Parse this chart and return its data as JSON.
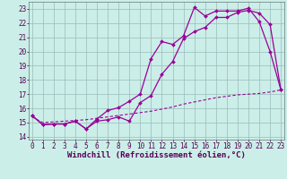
{
  "xlabel": "Windchill (Refroidissement éolien,°C)",
  "x_ticks": [
    0,
    1,
    2,
    3,
    4,
    5,
    6,
    7,
    8,
    9,
    10,
    11,
    12,
    13,
    14,
    15,
    16,
    17,
    18,
    19,
    20,
    21,
    22,
    23
  ],
  "y_ticks": [
    14,
    15,
    16,
    17,
    18,
    19,
    20,
    21,
    22,
    23
  ],
  "ylim": [
    13.8,
    23.5
  ],
  "xlim": [
    -0.3,
    23.3
  ],
  "line1_x": [
    0,
    1,
    2,
    3,
    4,
    5,
    6,
    7,
    8,
    9,
    10,
    11,
    12,
    13,
    14,
    15,
    16,
    17,
    18,
    19,
    20,
    21,
    22,
    23
  ],
  "line1_y": [
    15.5,
    14.85,
    14.9,
    14.9,
    15.1,
    14.55,
    15.25,
    15.85,
    16.05,
    16.5,
    17.0,
    19.5,
    20.7,
    20.5,
    21.1,
    23.1,
    22.5,
    22.85,
    22.85,
    22.85,
    23.05,
    22.1,
    20.0,
    17.3
  ],
  "line2_x": [
    0,
    1,
    2,
    3,
    4,
    5,
    6,
    7,
    8,
    9,
    10,
    11,
    12,
    13,
    14,
    15,
    16,
    17,
    18,
    19,
    20,
    21,
    22,
    23
  ],
  "line2_y": [
    15.5,
    14.85,
    14.9,
    14.9,
    15.1,
    14.55,
    15.1,
    15.2,
    15.4,
    15.1,
    16.4,
    16.9,
    18.4,
    19.3,
    20.9,
    21.4,
    21.7,
    22.4,
    22.4,
    22.75,
    22.9,
    22.7,
    21.9,
    17.3
  ],
  "line3_x": [
    0,
    1,
    2,
    3,
    4,
    5,
    6,
    7,
    8,
    9,
    10,
    11,
    12,
    13,
    14,
    15,
    16,
    17,
    18,
    19,
    20,
    21,
    22,
    23
  ],
  "line3_y": [
    15.4,
    15.0,
    15.05,
    15.1,
    15.15,
    15.2,
    15.3,
    15.4,
    15.5,
    15.6,
    15.7,
    15.8,
    15.95,
    16.1,
    16.3,
    16.45,
    16.6,
    16.75,
    16.85,
    16.95,
    17.0,
    17.05,
    17.15,
    17.3
  ],
  "line_color": "#990099",
  "bg_color": "#cceee8",
  "grid_color": "#99bbbb",
  "tick_fontsize": 5.5,
  "xlabel_fontsize": 6.5
}
